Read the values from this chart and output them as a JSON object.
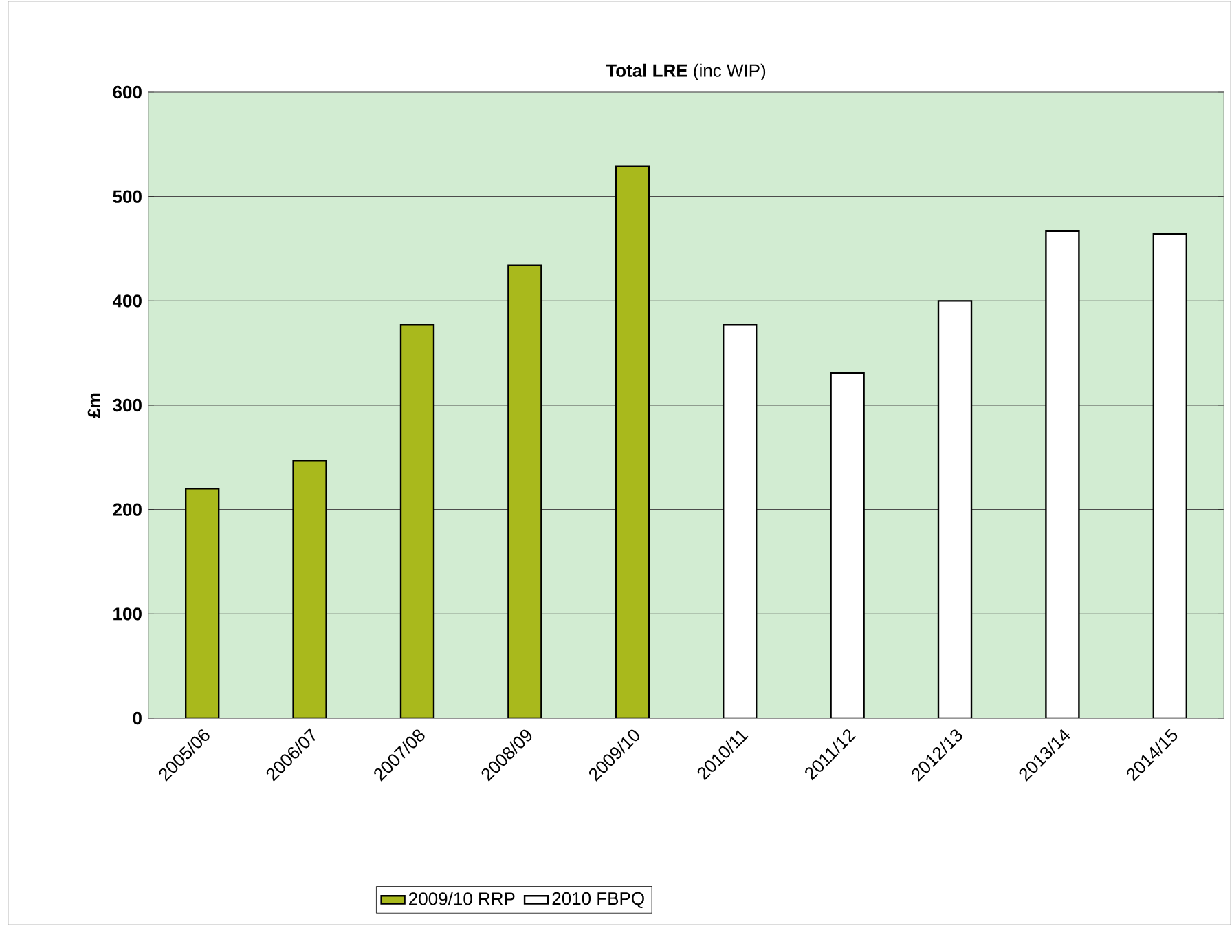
{
  "chart_data": {
    "type": "bar",
    "title": "**Total LRE** (inc WIP)",
    "ylabel": "£m",
    "categories": [
      "2005/06",
      "2006/07",
      "2007/08",
      "2008/09",
      "2009/10",
      "2010/11",
      "2011/12",
      "2012/13",
      "2013/14",
      "2014/15"
    ],
    "series": [
      {
        "name": "2009/10 RRP",
        "color": "#a9b91c",
        "values": [
          220,
          247,
          377,
          434,
          529,
          null,
          null,
          null,
          null,
          null
        ]
      },
      {
        "name": "2010 FBPQ",
        "color": "#ffffff",
        "values": [
          null,
          null,
          null,
          null,
          null,
          377,
          331,
          400,
          467,
          464
        ]
      }
    ],
    "ylim": [
      0,
      600
    ],
    "yticks": [
      0,
      100,
      200,
      300,
      400,
      500,
      600
    ],
    "grid": "y",
    "legend": "bottom"
  }
}
